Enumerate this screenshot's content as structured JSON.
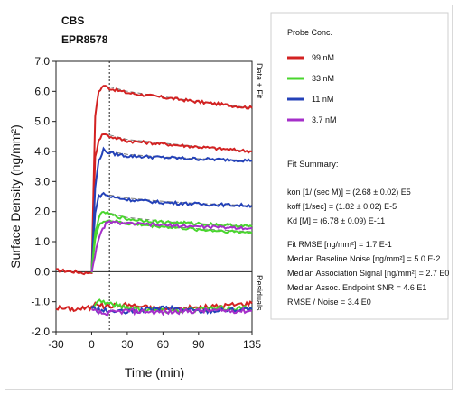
{
  "chart_data": {
    "type": "line",
    "title": "CBS",
    "subtitle": "EPR8578",
    "xlabel": "Time (min)",
    "ylabel": "Surface Density (ng/mm²)",
    "xlim": [
      -30,
      135
    ],
    "ylim": [
      -2.0,
      7.0
    ],
    "xticks": [
      "-30",
      "0",
      "30",
      "60",
      "90",
      "135"
    ],
    "xtick_values": [
      -30,
      0,
      30,
      60,
      90,
      135
    ],
    "yticks": [
      "-2.0",
      "-1.0",
      "0.0",
      "1.0",
      "2.0",
      "3.0",
      "4.0",
      "5.0",
      "6.0",
      "7.0"
    ],
    "ytick_values": [
      -2,
      -1,
      0,
      1,
      2,
      3,
      4,
      5,
      6,
      7
    ],
    "injection_end_x": 15,
    "upper_panel_label": "Data + Fit",
    "lower_panel_label": "Residuals",
    "legend": {
      "title": "Probe Conc.",
      "entries": [
        {
          "label": "99 nM",
          "color": "#d32222"
        },
        {
          "label": "33 nM",
          "color": "#49d62e"
        },
        {
          "label": "11 nM",
          "color": "#2442b8"
        },
        {
          "label": "3.7 nM",
          "color": "#a52fc9"
        }
      ]
    },
    "series": [
      {
        "color": "#d32222",
        "values": [
          [
            -30,
            0.05
          ],
          [
            -15,
            0.0
          ],
          [
            -5,
            -0.05
          ],
          [
            0,
            0.0
          ],
          [
            3,
            5.2
          ],
          [
            6,
            6.0
          ],
          [
            10,
            6.2
          ],
          [
            15,
            6.1
          ],
          [
            30,
            5.95
          ],
          [
            60,
            5.8
          ],
          [
            90,
            5.65
          ],
          [
            135,
            5.45
          ]
        ]
      },
      {
        "color": "#d32222",
        "values": [
          [
            0,
            0.0
          ],
          [
            3,
            3.8
          ],
          [
            6,
            4.4
          ],
          [
            10,
            4.6
          ],
          [
            15,
            4.5
          ],
          [
            30,
            4.35
          ],
          [
            60,
            4.25
          ],
          [
            90,
            4.15
          ],
          [
            135,
            4.0
          ]
        ]
      },
      {
        "color": "#2442b8",
        "values": [
          [
            0,
            0.0
          ],
          [
            3,
            2.8
          ],
          [
            6,
            3.7
          ],
          [
            10,
            4.05
          ],
          [
            15,
            3.95
          ],
          [
            30,
            3.85
          ],
          [
            60,
            3.8
          ],
          [
            90,
            3.75
          ],
          [
            135,
            3.7
          ]
        ]
      },
      {
        "color": "#2442b8",
        "values": [
          [
            0,
            0.0
          ],
          [
            3,
            2.0
          ],
          [
            6,
            2.5
          ],
          [
            10,
            2.6
          ],
          [
            15,
            2.5
          ],
          [
            30,
            2.4
          ],
          [
            60,
            2.3
          ],
          [
            90,
            2.25
          ],
          [
            135,
            2.2
          ]
        ]
      },
      {
        "color": "#49d62e",
        "values": [
          [
            0,
            0.0
          ],
          [
            3,
            1.3
          ],
          [
            6,
            1.8
          ],
          [
            10,
            2.0
          ],
          [
            15,
            1.9
          ],
          [
            30,
            1.75
          ],
          [
            60,
            1.65
          ],
          [
            90,
            1.6
          ],
          [
            135,
            1.5
          ]
        ]
      },
      {
        "color": "#49d62e",
        "values": [
          [
            0,
            0.0
          ],
          [
            3,
            1.1
          ],
          [
            6,
            1.5
          ],
          [
            10,
            1.7
          ],
          [
            15,
            1.7
          ],
          [
            30,
            1.6
          ],
          [
            60,
            1.5
          ],
          [
            90,
            1.4
          ],
          [
            135,
            1.3
          ]
        ]
      },
      {
        "color": "#a52fc9",
        "values": [
          [
            0,
            0.0
          ],
          [
            4,
            0.8
          ],
          [
            8,
            1.3
          ],
          [
            12,
            1.6
          ],
          [
            15,
            1.65
          ],
          [
            30,
            1.6
          ],
          [
            60,
            1.55
          ],
          [
            90,
            1.5
          ],
          [
            135,
            1.45
          ]
        ]
      }
    ],
    "fits": [
      {
        "values": [
          [
            15,
            6.15
          ],
          [
            30,
            6.0
          ],
          [
            60,
            5.82
          ],
          [
            90,
            5.66
          ],
          [
            135,
            5.45
          ]
        ]
      },
      {
        "values": [
          [
            15,
            4.55
          ],
          [
            30,
            4.4
          ],
          [
            60,
            4.28
          ],
          [
            90,
            4.16
          ],
          [
            135,
            4.0
          ]
        ]
      },
      {
        "values": [
          [
            15,
            4.0
          ],
          [
            30,
            3.9
          ],
          [
            60,
            3.82
          ],
          [
            90,
            3.76
          ],
          [
            135,
            3.7
          ]
        ]
      },
      {
        "values": [
          [
            15,
            2.55
          ],
          [
            30,
            2.45
          ],
          [
            60,
            2.34
          ],
          [
            90,
            2.27
          ],
          [
            135,
            2.2
          ]
        ]
      },
      {
        "values": [
          [
            15,
            1.95
          ],
          [
            30,
            1.8
          ],
          [
            60,
            1.68
          ],
          [
            90,
            1.6
          ],
          [
            135,
            1.5
          ]
        ]
      },
      {
        "values": [
          [
            15,
            1.7
          ],
          [
            30,
            1.62
          ],
          [
            60,
            1.52
          ],
          [
            90,
            1.43
          ],
          [
            135,
            1.33
          ]
        ]
      }
    ],
    "residuals": [
      {
        "color": "#d32222",
        "values": [
          [
            -30,
            -1.2
          ],
          [
            -15,
            -1.25
          ],
          [
            0,
            -1.2
          ],
          [
            3,
            -1.0
          ],
          [
            10,
            -1.15
          ],
          [
            30,
            -1.1
          ],
          [
            60,
            -1.25
          ],
          [
            90,
            -1.2
          ],
          [
            135,
            -1.05
          ]
        ]
      },
      {
        "color": "#49d62e",
        "values": [
          [
            0,
            -1.2
          ],
          [
            5,
            -0.95
          ],
          [
            10,
            -1.0
          ],
          [
            30,
            -1.2
          ],
          [
            60,
            -1.3
          ],
          [
            90,
            -1.25
          ],
          [
            135,
            -1.2
          ]
        ]
      },
      {
        "color": "#2442b8",
        "values": [
          [
            0,
            -1.2
          ],
          [
            10,
            -1.3
          ],
          [
            30,
            -1.35
          ],
          [
            60,
            -1.2
          ],
          [
            90,
            -1.3
          ],
          [
            135,
            -1.25
          ]
        ]
      },
      {
        "color": "#a52fc9",
        "values": [
          [
            0,
            -1.3
          ],
          [
            10,
            -1.4
          ],
          [
            30,
            -1.3
          ],
          [
            60,
            -1.35
          ],
          [
            90,
            -1.3
          ],
          [
            135,
            -1.3
          ]
        ]
      }
    ]
  },
  "fit_summary": {
    "title": "Fit Summary:",
    "lines": [
      "kon  [1/ (sec M)]  =   (2.68 ± 0.02) E5",
      "koff  [1/sec]  =   (1.82 ± 0.02) E-5",
      "Kd  [M]  =  (6.78 ± 0.09) E-11"
    ],
    "stats": [
      "Fit RMSE [ng/mm²]  =   1.7 E-1",
      "Median Baseline Noise [ng/mm²]  =  5.0 E-2",
      "Median Association Signal [ng/mm²]  =  2.7 E0",
      "Median Assoc. Endpoint SNR  =  4.6 E1",
      "RMSE / Noise  =   3.4 E0"
    ]
  }
}
